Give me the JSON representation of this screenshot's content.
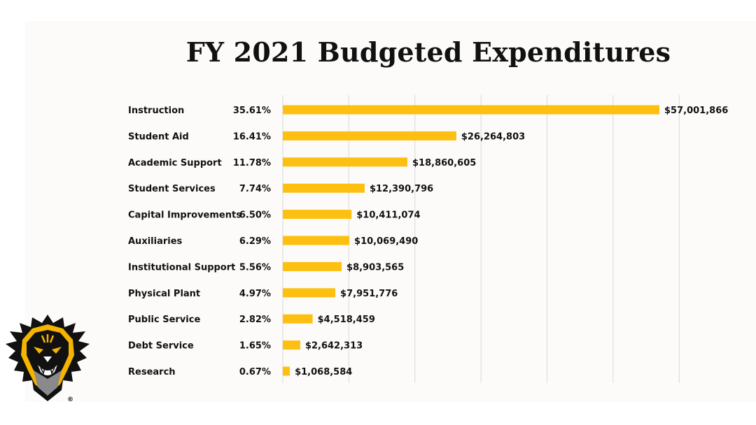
{
  "chart_data": {
    "type": "bar",
    "orientation": "horizontal",
    "title": "FY 2021 Budgeted Expenditures",
    "categories": [
      "Instruction",
      "Student Aid",
      "Academic Support",
      "Student Services",
      "Capital Improvements",
      "Auxiliaries",
      "Institutional Support",
      "Physical Plant",
      "Public Service",
      "Debt Service",
      "Research"
    ],
    "percent_labels": [
      "35.61%",
      "16.41%",
      "11.78%",
      "7.74%",
      "6.50%",
      "6.29%",
      "5.56%",
      "4.97%",
      "2.82%",
      "1.65%",
      "0.67%"
    ],
    "values": [
      57001866,
      26264803,
      18860605,
      12390796,
      10411074,
      10069490,
      8903565,
      7951776,
      4518459,
      2642313,
      1068584
    ],
    "value_labels": [
      "$57,001,866",
      "$26,264,803",
      "$18,860,605",
      "$12,390,796",
      "$10,411,074",
      "$10,069,490",
      "$8,903,565",
      "$7,951,776",
      "$4,518,459",
      "$2,642,313",
      "$1,068,584"
    ],
    "xlim": [
      0,
      60000000
    ],
    "gridlines": "vertical",
    "bar_color": "#fdc010",
    "grid_color": "#d9d9d9"
  },
  "logo": {
    "name": "tiger-mascot-logo",
    "mark": "®"
  },
  "colors": {
    "slide_background": "#fcfbf9",
    "accent_gold": "#f5b400",
    "logo_black": "#111111"
  }
}
